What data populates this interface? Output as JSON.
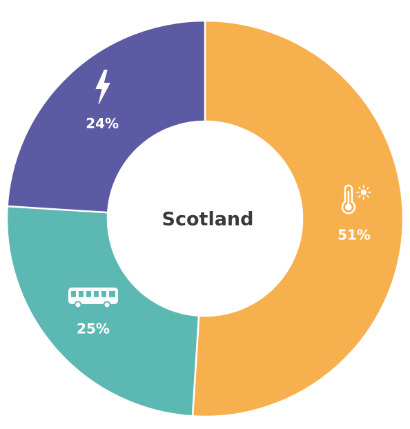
{
  "chart_data": {
    "type": "pie",
    "variant": "donut",
    "center_label": "Scotland",
    "slices": [
      {
        "label_text": "51%",
        "value": 51,
        "color": "#F7B04E",
        "icon": "thermometer-sun-icon"
      },
      {
        "label_text": "25%",
        "value": 25,
        "color": "#5CB8B2",
        "icon": "bus-icon"
      },
      {
        "label_text": "24%",
        "value": 24,
        "color": "#5B5AA2",
        "icon": "lightning-bolt-icon"
      }
    ]
  }
}
